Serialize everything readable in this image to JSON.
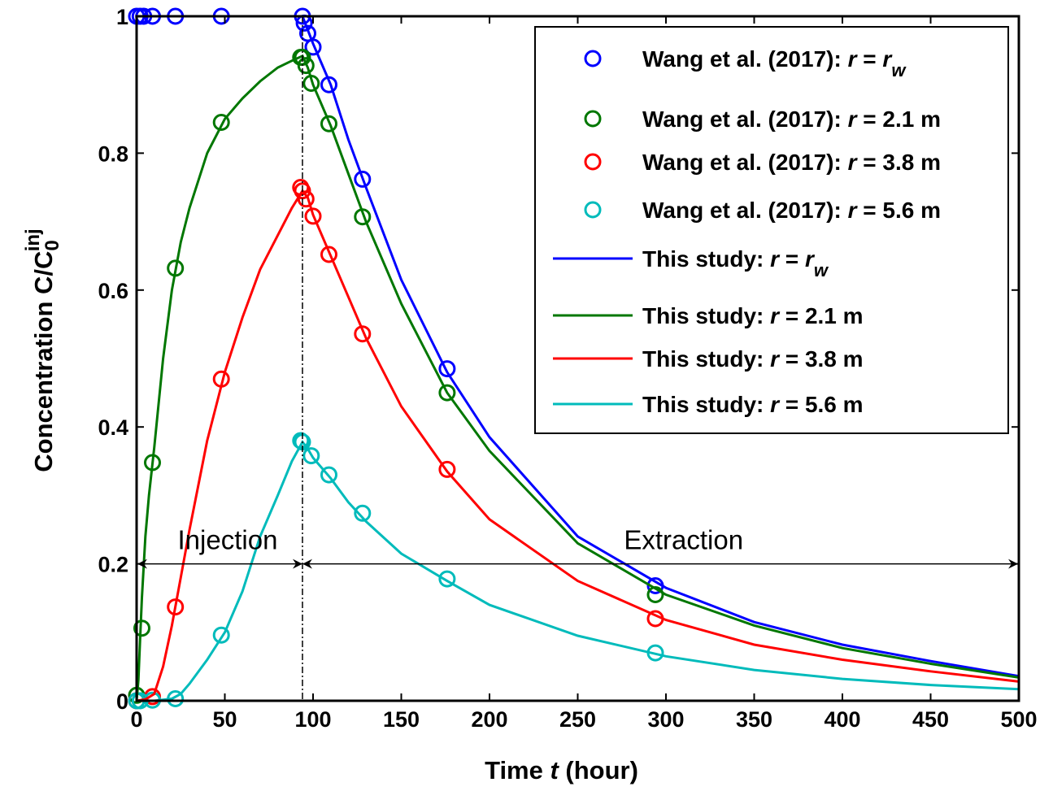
{
  "chart_data": {
    "type": "line",
    "xlabel": {
      "prefix": "Time ",
      "var": "t",
      "suffix": " (hour)"
    },
    "ylabel": {
      "main": "Concentration C/C",
      "sub": "0",
      "sup": "inj"
    },
    "xlim": [
      0,
      500
    ],
    "ylim": [
      0,
      1
    ],
    "xticks": [
      "0",
      "50",
      "100",
      "150",
      "200",
      "250",
      "300",
      "350",
      "400",
      "450",
      "500"
    ],
    "yticks": [
      "0",
      "0.2",
      "0.4",
      "0.6",
      "0.8",
      "1"
    ],
    "grid": false,
    "legend_placement": "top-right",
    "injection_end_x": 94,
    "annotations": {
      "injection": {
        "label": "Injection",
        "x_start": 0,
        "x_end": 94,
        "y": 0.2
      },
      "extraction": {
        "label": "Extraction",
        "x_start": 94,
        "x_end": 500,
        "y": 0.2
      }
    },
    "series": [
      {
        "name": "Wang et al. (2017): r = r_w",
        "legend": {
          "prefix": "Wang et al. (2017): ",
          "var": "r",
          "mid": " = ",
          "var2": "r",
          "sub": "w",
          "suffix": ""
        },
        "style": "markers",
        "color": "#0000ff",
        "points": [
          [
            0,
            1
          ],
          [
            2,
            1
          ],
          [
            4,
            1
          ],
          [
            9,
            1
          ],
          [
            22,
            1
          ],
          [
            48,
            1
          ],
          [
            94,
            1
          ],
          [
            95,
            0.99
          ],
          [
            97,
            0.975
          ],
          [
            100,
            0.955
          ],
          [
            109,
            0.9
          ],
          [
            128,
            0.762
          ],
          [
            176,
            0.485
          ],
          [
            294,
            0.168
          ]
        ]
      },
      {
        "name": "Wang et al. (2017): r = 2.1 m",
        "legend": {
          "prefix": "Wang et al. (2017): ",
          "var": "r",
          "mid": " = 2.1 m",
          "var2": "",
          "sub": "",
          "suffix": ""
        },
        "style": "markers",
        "color": "#007700",
        "points": [
          [
            0,
            0.008
          ],
          [
            3,
            0.106
          ],
          [
            9,
            0.348
          ],
          [
            22,
            0.632
          ],
          [
            48,
            0.845
          ],
          [
            93,
            0.94
          ],
          [
            94,
            0.94
          ],
          [
            96,
            0.928
          ],
          [
            99,
            0.902
          ],
          [
            109,
            0.843
          ],
          [
            128,
            0.707
          ],
          [
            176,
            0.45
          ],
          [
            294,
            0.155
          ]
        ]
      },
      {
        "name": "Wang et al. (2017): r = 3.8 m",
        "legend": {
          "prefix": "Wang et al. (2017): ",
          "var": "r",
          "mid": " = 3.8 m",
          "var2": "",
          "sub": "",
          "suffix": ""
        },
        "style": "markers",
        "color": "#ff0000",
        "points": [
          [
            0,
            0
          ],
          [
            9,
            0.006
          ],
          [
            22,
            0.137
          ],
          [
            48,
            0.47
          ],
          [
            93,
            0.75
          ],
          [
            94,
            0.745
          ],
          [
            96,
            0.733
          ],
          [
            100,
            0.708
          ],
          [
            109,
            0.652
          ],
          [
            128,
            0.536
          ],
          [
            176,
            0.338
          ],
          [
            294,
            0.12
          ]
        ]
      },
      {
        "name": "Wang et al. (2017): r = 5.6 m",
        "legend": {
          "prefix": "Wang et al. (2017): ",
          "var": "r",
          "mid": " = 5.6 m",
          "var2": "",
          "sub": "",
          "suffix": ""
        },
        "style": "markers",
        "color": "#00bbbb",
        "points": [
          [
            0,
            0
          ],
          [
            2,
            0
          ],
          [
            9,
            0.001
          ],
          [
            22,
            0.003
          ],
          [
            48,
            0.096
          ],
          [
            93,
            0.38
          ],
          [
            94,
            0.378
          ],
          [
            99,
            0.358
          ],
          [
            109,
            0.33
          ],
          [
            128,
            0.274
          ],
          [
            176,
            0.178
          ],
          [
            294,
            0.07
          ]
        ]
      },
      {
        "name": "This study: r = r_w",
        "legend": {
          "prefix": "This study: ",
          "var": "r",
          "mid": " = ",
          "var2": "r",
          "sub": "w",
          "suffix": ""
        },
        "style": "line",
        "color": "#0000ff",
        "points": [
          [
            0,
            1
          ],
          [
            94,
            1
          ],
          [
            97,
            0.98
          ],
          [
            100,
            0.96
          ],
          [
            110,
            0.9
          ],
          [
            120,
            0.82
          ],
          [
            130,
            0.75
          ],
          [
            150,
            0.615
          ],
          [
            176,
            0.48
          ],
          [
            200,
            0.385
          ],
          [
            250,
            0.24
          ],
          [
            300,
            0.165
          ],
          [
            350,
            0.115
          ],
          [
            400,
            0.082
          ],
          [
            450,
            0.058
          ],
          [
            500,
            0.036
          ]
        ]
      },
      {
        "name": "This study: r = 2.1 m",
        "legend": {
          "prefix": "This study: ",
          "var": "r",
          "mid": " = 2.1 m",
          "var2": "",
          "sub": "",
          "suffix": ""
        },
        "style": "line",
        "color": "#007700",
        "points": [
          [
            0,
            0
          ],
          [
            1,
            0.03
          ],
          [
            2,
            0.09
          ],
          [
            3,
            0.15
          ],
          [
            5,
            0.24
          ],
          [
            7,
            0.3
          ],
          [
            10,
            0.37
          ],
          [
            15,
            0.5
          ],
          [
            20,
            0.6
          ],
          [
            25,
            0.67
          ],
          [
            30,
            0.72
          ],
          [
            40,
            0.8
          ],
          [
            50,
            0.85
          ],
          [
            60,
            0.88
          ],
          [
            70,
            0.905
          ],
          [
            80,
            0.925
          ],
          [
            88,
            0.935
          ],
          [
            94,
            0.942
          ],
          [
            97,
            0.925
          ],
          [
            100,
            0.9
          ],
          [
            110,
            0.84
          ],
          [
            120,
            0.77
          ],
          [
            130,
            0.7
          ],
          [
            150,
            0.58
          ],
          [
            176,
            0.45
          ],
          [
            200,
            0.365
          ],
          [
            250,
            0.23
          ],
          [
            300,
            0.155
          ],
          [
            350,
            0.11
          ],
          [
            400,
            0.077
          ],
          [
            450,
            0.054
          ],
          [
            500,
            0.034
          ]
        ]
      },
      {
        "name": "This study: r = 3.8 m",
        "legend": {
          "prefix": "This study: ",
          "var": "r",
          "mid": " = 3.8 m",
          "var2": "",
          "sub": "",
          "suffix": ""
        },
        "style": "line",
        "color": "#ff0000",
        "points": [
          [
            0,
            0
          ],
          [
            5,
            0.002
          ],
          [
            10,
            0.01
          ],
          [
            15,
            0.05
          ],
          [
            20,
            0.11
          ],
          [
            25,
            0.18
          ],
          [
            30,
            0.25
          ],
          [
            40,
            0.38
          ],
          [
            50,
            0.48
          ],
          [
            60,
            0.56
          ],
          [
            70,
            0.63
          ],
          [
            80,
            0.68
          ],
          [
            88,
            0.72
          ],
          [
            94,
            0.745
          ],
          [
            97,
            0.735
          ],
          [
            100,
            0.71
          ],
          [
            110,
            0.65
          ],
          [
            120,
            0.59
          ],
          [
            130,
            0.53
          ],
          [
            150,
            0.43
          ],
          [
            176,
            0.335
          ],
          [
            200,
            0.265
          ],
          [
            250,
            0.175
          ],
          [
            300,
            0.118
          ],
          [
            350,
            0.082
          ],
          [
            400,
            0.06
          ],
          [
            450,
            0.043
          ],
          [
            500,
            0.028
          ]
        ]
      },
      {
        "name": "This study: r = 5.6 m",
        "legend": {
          "prefix": "This study: ",
          "var": "r",
          "mid": " = 5.6 m",
          "var2": "",
          "sub": "",
          "suffix": ""
        },
        "style": "line",
        "color": "#00bbbb",
        "points": [
          [
            0,
            0
          ],
          [
            10,
            0
          ],
          [
            20,
            0.003
          ],
          [
            25,
            0.01
          ],
          [
            30,
            0.025
          ],
          [
            40,
            0.06
          ],
          [
            50,
            0.1
          ],
          [
            60,
            0.16
          ],
          [
            70,
            0.24
          ],
          [
            80,
            0.3
          ],
          [
            88,
            0.35
          ],
          [
            94,
            0.378
          ],
          [
            97,
            0.368
          ],
          [
            100,
            0.355
          ],
          [
            110,
            0.325
          ],
          [
            120,
            0.29
          ],
          [
            130,
            0.262
          ],
          [
            150,
            0.215
          ],
          [
            176,
            0.175
          ],
          [
            200,
            0.14
          ],
          [
            250,
            0.095
          ],
          [
            300,
            0.065
          ],
          [
            350,
            0.045
          ],
          [
            400,
            0.032
          ],
          [
            450,
            0.023
          ],
          [
            500,
            0.017
          ]
        ]
      }
    ]
  }
}
